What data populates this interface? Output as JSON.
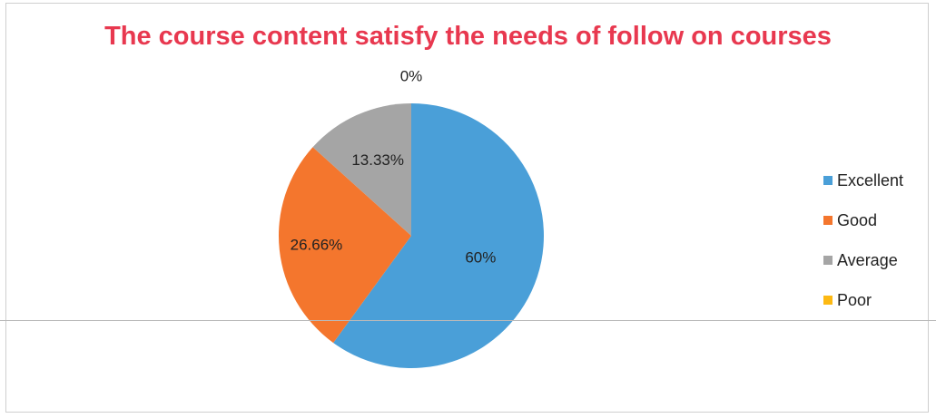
{
  "chart_data": {
    "type": "pie",
    "title": "The course content satisfy the needs of follow on courses",
    "categories": [
      "Excellent",
      "Good",
      "Average",
      "Poor"
    ],
    "values": [
      60,
      26.66,
      13.33,
      0
    ],
    "data_labels": [
      "60%",
      "26.66%",
      "13.33%",
      "0%"
    ],
    "colors": [
      "#4a9fd8",
      "#f4762d",
      "#a5a5a5",
      "#fdb913"
    ],
    "legend_position": "right"
  }
}
